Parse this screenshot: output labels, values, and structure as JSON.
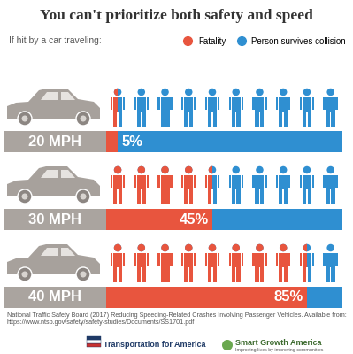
{
  "chart_data": {
    "type": "bar",
    "orientation": "horizontal",
    "stacked": true,
    "title": "You can't prioritize both safety and speed",
    "subtitle": "If hit by a car traveling:",
    "categories": [
      "20 MPH",
      "30 MPH",
      "40 MPH"
    ],
    "series": [
      {
        "name": "Fatality",
        "color": "#e8553e",
        "values": [
          5,
          45,
          85
        ],
        "value_labels": [
          "5%",
          "45%",
          "85%"
        ]
      },
      {
        "name": "Person survives collision",
        "color": "#2f8fd1",
        "values": [
          95,
          55,
          15
        ]
      }
    ],
    "xlim": [
      0,
      100
    ],
    "data_labels": true,
    "tick_labels": false,
    "legend": "upper right",
    "source": "National Traffic Safety Board (2017) Reducing Speeding-Related Crashes Involving Passenger Vehicles. Available from: https://www.ntsb.gov/safety/safety-studies/Documents/SS1701.pdf",
    "logos": [
      "Transportation for America",
      "Smart Growth America"
    ],
    "logo_tagline": "Improving lives by improving communities"
  }
}
